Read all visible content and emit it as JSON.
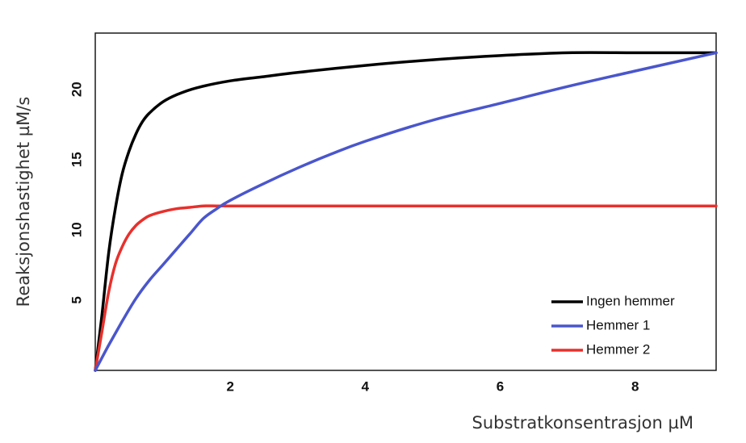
{
  "chart_data": {
    "type": "line",
    "title": "",
    "xlabel": "Substratkonsentrasjon µM",
    "ylabel": "Reaksjonshastighet µM/s",
    "xlim": [
      0,
      9.2
    ],
    "ylim": [
      0,
      24
    ],
    "x_ticks": [
      2,
      4,
      6,
      8
    ],
    "y_ticks": [
      5,
      10,
      15,
      20
    ],
    "grid": false,
    "legend_position": "bottom-right",
    "series": [
      {
        "name": "Ingen hemmer",
        "color": "#000000",
        "x": [
          0,
          0.1,
          0.2,
          0.3,
          0.4,
          0.5,
          0.6,
          0.7,
          0.8,
          1.0,
          1.2,
          1.5,
          2.0,
          2.5,
          3.0,
          4.0,
          5.0,
          6.0,
          7.0,
          8.0,
          9.2
        ],
        "y": [
          0,
          4.0,
          8.4,
          11.6,
          14.0,
          15.6,
          16.8,
          17.7,
          18.3,
          19.1,
          19.6,
          20.1,
          20.6,
          20.9,
          21.2,
          21.7,
          22.1,
          22.4,
          22.6,
          22.6,
          22.6
        ]
      },
      {
        "name": "Hemmer 1",
        "color": "#4a56cc",
        "x": [
          0,
          0.2,
          0.4,
          0.6,
          0.8,
          1.0,
          1.2,
          1.4,
          1.6,
          1.8,
          2.0,
          2.5,
          3.0,
          3.5,
          4.0,
          5.0,
          6.0,
          7.0,
          8.0,
          9.2
        ],
        "y": [
          0,
          1.8,
          3.5,
          5.1,
          6.4,
          7.5,
          8.6,
          9.7,
          10.8,
          11.5,
          12.1,
          13.3,
          14.4,
          15.4,
          16.3,
          17.8,
          19.0,
          20.2,
          21.3,
          22.6
        ]
      },
      {
        "name": "Hemmer 2",
        "color": "#e8302c",
        "x": [
          0,
          0.1,
          0.2,
          0.3,
          0.4,
          0.5,
          0.6,
          0.7,
          0.8,
          1.0,
          1.2,
          1.4,
          1.6,
          1.8,
          2.0,
          3.0,
          4.0,
          6.0,
          8.0,
          9.2
        ],
        "y": [
          0,
          2.8,
          5.6,
          7.6,
          8.8,
          9.7,
          10.3,
          10.7,
          11.0,
          11.3,
          11.5,
          11.6,
          11.7,
          11.7,
          11.7,
          11.7,
          11.7,
          11.7,
          11.7,
          11.7
        ]
      }
    ]
  }
}
